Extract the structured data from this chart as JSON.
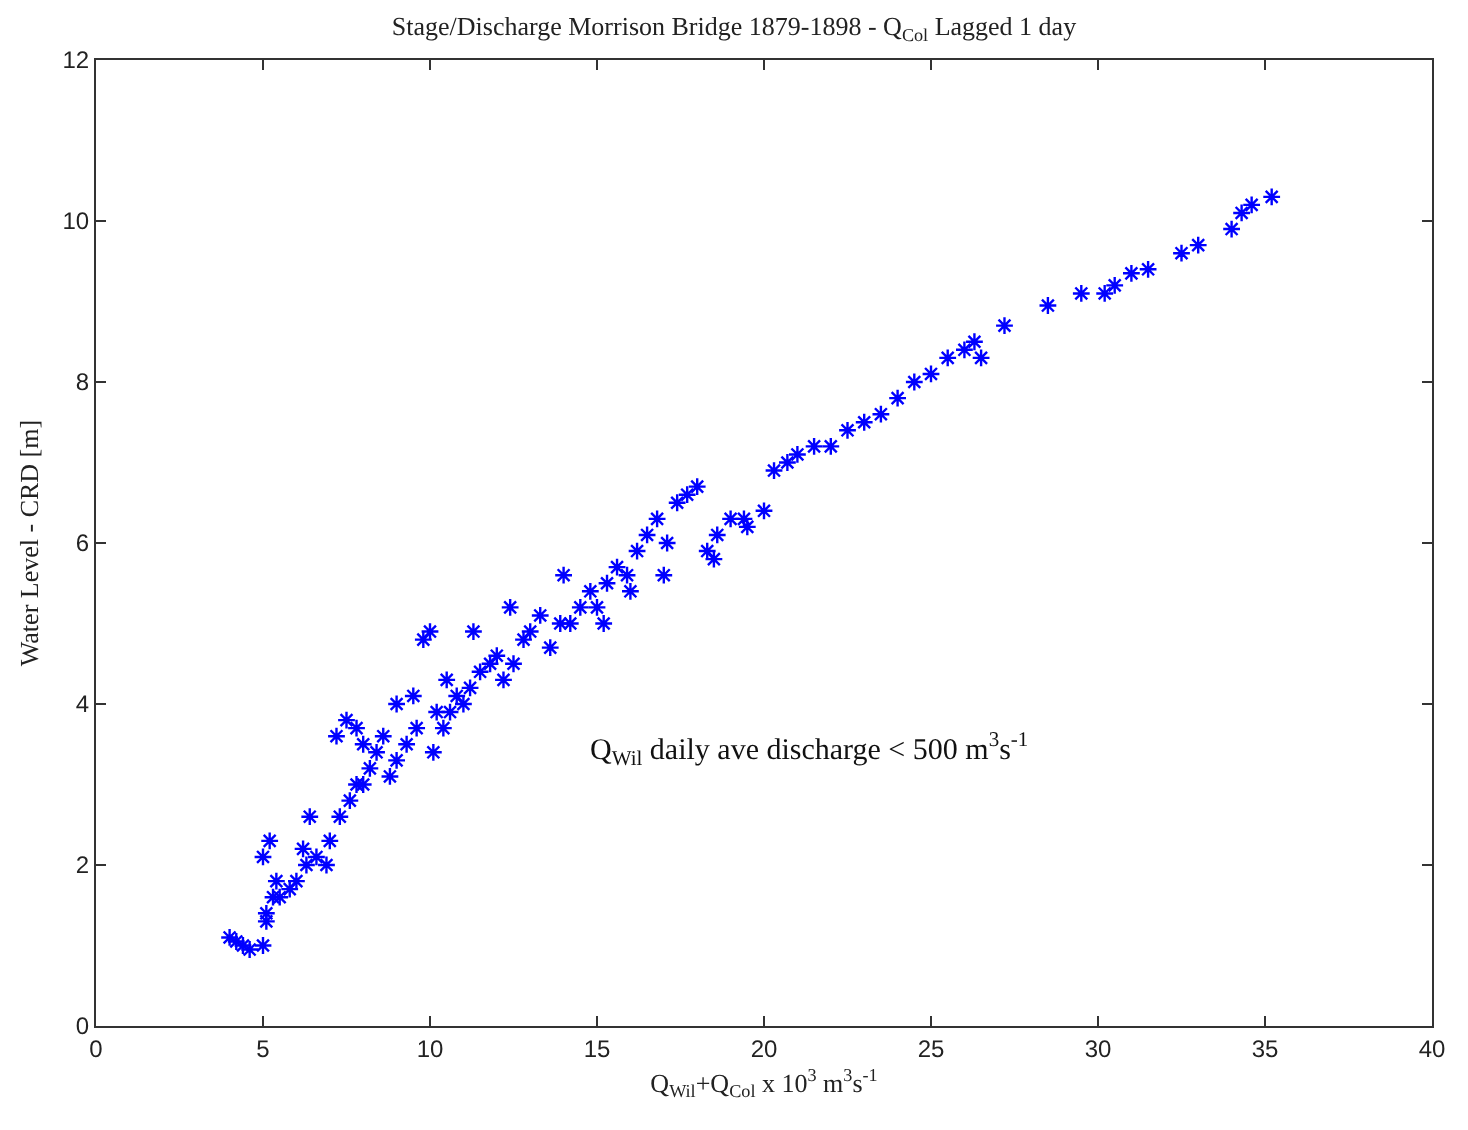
{
  "chart_data": {
    "type": "scatter",
    "title": "Stage/Discharge Morrison Bridge 1879-1898 - Q$_{Col}$ Lagged 1 day",
    "xlabel": "Q$_{Wil}$+Q$_{Col}$ x 10$^{3}$ m$^{3}$s$^{-1}$",
    "ylabel": "Water Level - CRD [m]",
    "annotations": [
      "Q$_{Wil}$ daily ave discharge < 500 m$^{3}$s$^{-1}$"
    ],
    "series": [
      {
        "color": "#0000ff",
        "x": [
          4.0,
          4.2,
          4.4,
          4.6,
          5.0,
          5.1,
          5.0,
          5.2,
          5.3,
          5.4,
          5.1,
          5.5,
          5.8,
          6.0,
          6.3,
          6.6,
          6.9,
          6.2,
          6.4,
          7.0,
          7.3,
          7.6,
          7.8,
          8.0,
          7.2,
          7.5,
          7.8,
          8.2,
          8.4,
          8.6,
          8.0,
          8.8,
          9.0,
          9.3,
          9.6,
          9.0,
          9.5,
          9.8,
          10.0,
          10.2,
          10.4,
          10.6,
          10.8,
          10.1,
          10.5,
          11.0,
          11.2,
          11.5,
          11.8,
          12.0,
          11.3,
          12.2,
          12.5,
          12.8,
          13.0,
          13.3,
          12.4,
          13.6,
          13.9,
          14.2,
          14.5,
          14.8,
          14.0,
          15.0,
          15.3,
          15.6,
          15.9,
          16.2,
          15.2,
          16.5,
          16.8,
          17.1,
          17.4,
          17.7,
          16.0,
          18.0,
          18.3,
          18.6,
          19.0,
          19.4,
          17.0,
          18.5,
          19.5,
          20.0,
          20.3,
          20.7,
          21.0,
          21.5,
          22.0,
          22.5,
          23.0,
          23.5,
          24.0,
          24.5,
          25.0,
          25.5,
          26.0,
          26.3,
          26.5,
          27.2,
          28.5,
          29.5,
          30.2,
          30.5,
          31.0,
          31.5,
          32.5,
          33.0,
          34.0,
          34.3,
          34.6,
          35.2
        ],
        "values": [
          1.1,
          1.05,
          1.0,
          0.95,
          1.0,
          1.4,
          2.1,
          2.3,
          1.6,
          1.8,
          1.3,
          1.6,
          1.7,
          1.8,
          2.0,
          2.1,
          2.0,
          2.2,
          2.6,
          2.3,
          2.6,
          2.8,
          3.0,
          3.0,
          3.6,
          3.8,
          3.7,
          3.2,
          3.4,
          3.6,
          3.5,
          3.1,
          3.3,
          3.5,
          3.7,
          4.0,
          4.1,
          4.8,
          4.9,
          3.9,
          3.7,
          3.9,
          4.1,
          3.4,
          4.3,
          4.0,
          4.2,
          4.4,
          4.5,
          4.6,
          4.9,
          4.3,
          4.5,
          4.8,
          4.9,
          5.1,
          5.2,
          4.7,
          5.0,
          5.0,
          5.2,
          5.4,
          5.6,
          5.2,
          5.5,
          5.7,
          5.6,
          5.9,
          5.0,
          6.1,
          6.3,
          6.0,
          6.5,
          6.6,
          5.4,
          6.7,
          5.9,
          6.1,
          6.3,
          6.3,
          5.6,
          5.8,
          6.2,
          6.4,
          6.9,
          7.0,
          7.1,
          7.2,
          7.2,
          7.4,
          7.5,
          7.6,
          7.8,
          8.0,
          8.1,
          8.3,
          8.4,
          8.5,
          8.3,
          8.7,
          8.95,
          9.1,
          9.1,
          9.2,
          9.35,
          9.4,
          9.6,
          9.7,
          9.9,
          10.1,
          10.2,
          10.3
        ]
      }
    ],
    "xlim": [
      0,
      40
    ],
    "xticks": [
      0,
      5,
      10,
      15,
      20,
      25,
      30,
      35,
      40
    ],
    "ylim": [
      0,
      12
    ],
    "yticks": [
      0,
      2,
      4,
      6,
      8,
      10,
      12
    ],
    "marker": "cross"
  }
}
